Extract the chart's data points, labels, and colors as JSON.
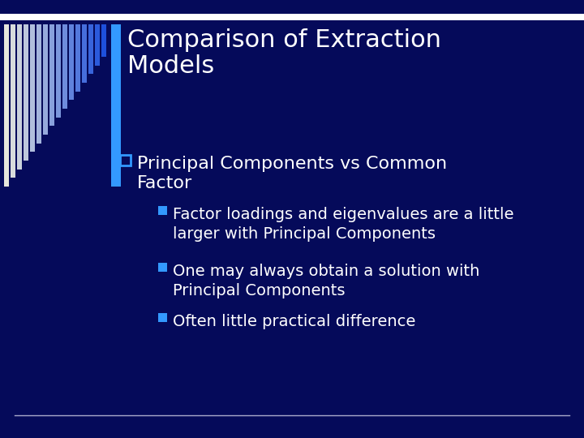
{
  "title_line1": "Comparison of Extraction",
  "title_line2": "Models",
  "bg_color": "#050A5A",
  "title_color": "#FFFFFF",
  "bullet1_line1": "Principal Components vs Common",
  "bullet1_line2": "Factor",
  "bullet1_color": "#FFFFFF",
  "bullet1_marker_color": "#3399FF",
  "sub_bullets": [
    "Factor loadings and eigenvalues are a little\nlarger with Principal Components",
    "One may always obtain a solution with\nPrincipal Components",
    "Often little practical difference"
  ],
  "sub_bullet_color": "#FFFFFF",
  "sub_bullet_marker_color": "#3399FF",
  "accent_bar_color": "#3399FF",
  "bottom_line_color": "#AAAACC",
  "title_fontsize": 22,
  "bullet1_fontsize": 16,
  "sub_bullet_fontsize": 14
}
